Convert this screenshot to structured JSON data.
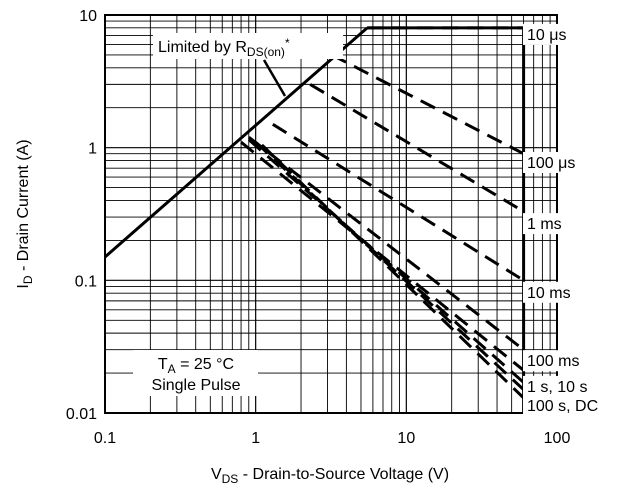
{
  "chart_data": {
    "type": "line",
    "x_scale": "log",
    "y_scale": "log",
    "xlim": [
      0.1,
      100
    ],
    "ylim": [
      0.01,
      10
    ],
    "grid": true,
    "x_tick_labels": [
      "0.1",
      "1",
      "10",
      "100"
    ],
    "y_tick_labels": [
      "0.01",
      "0.1",
      "1",
      "10"
    ],
    "xlabel": {
      "main": "V",
      "sub": "DS",
      "rest": " - Drain-to-Source Voltage (V)"
    },
    "ylabel": {
      "main": "I",
      "sub": "D",
      "rest": " - Drain Current (A)"
    },
    "annotations": {
      "rds_limit": {
        "main": "Limited by R",
        "sub": "DS(on)",
        "sup": "*"
      },
      "conditions": {
        "line1_main": "T",
        "line1_sub": "A",
        "line1_rest": " = 25 °C",
        "line2": "Single Pulse"
      }
    },
    "series": [
      {
        "id": "rds-limit",
        "style": "solid",
        "points": [
          [
            0.1,
            0.15
          ],
          [
            5.5,
            8
          ]
        ]
      },
      {
        "id": "current-limit",
        "style": "solid",
        "points": [
          [
            5.5,
            8
          ],
          [
            60,
            8
          ]
        ]
      },
      {
        "id": "voltage-limit",
        "style": "solid",
        "points": [
          [
            60,
            8
          ],
          [
            60,
            0.01
          ]
        ]
      },
      {
        "name": "10 μs",
        "style": "dashed",
        "points": [
          [
            5.5,
            8
          ],
          [
            60,
            8
          ]
        ]
      },
      {
        "name": "100 μs",
        "style": "dashed",
        "points": [
          [
            3.2,
            5
          ],
          [
            60,
            0.9
          ]
        ]
      },
      {
        "name": "1 ms",
        "style": "dashed",
        "points": [
          [
            2.3,
            3
          ],
          [
            60,
            0.33
          ]
        ]
      },
      {
        "name": "10 ms",
        "style": "dashed",
        "points": [
          [
            1.3,
            1.5
          ],
          [
            60,
            0.1
          ]
        ]
      },
      {
        "name": "100 ms",
        "style": "dashed",
        "points": [
          [
            0.9,
            1.2
          ],
          [
            60,
            0.03
          ]
        ]
      },
      {
        "name": "1 s, 10 s",
        "style": "dashed",
        "points": [
          [
            0.8,
            1.1
          ],
          [
            60,
            0.021
          ]
        ]
      },
      {
        "name": "1 s, 10 s",
        "style": "dashed",
        "points": [
          [
            0.9,
            1.15
          ],
          [
            60,
            0.017
          ]
        ]
      },
      {
        "name": "100 s, DC",
        "style": "dashed",
        "points": [
          [
            1.0,
            1.1
          ],
          [
            60,
            0.015
          ]
        ]
      },
      {
        "name": "100 s, DC",
        "style": "dashed",
        "points": [
          [
            1.1,
            1.05
          ],
          [
            60,
            0.013
          ]
        ]
      }
    ],
    "curve_labels": [
      {
        "text": "10 μs",
        "y": 7.2
      },
      {
        "text": "100 μs",
        "y": 0.78
      },
      {
        "text": "1 ms",
        "y": 0.27
      },
      {
        "text": "10 ms",
        "y": 0.082
      },
      {
        "text": "100 ms",
        "y": 0.025
      },
      {
        "text": "1 s, 10 s",
        "y": 0.016
      },
      {
        "text": "100 s, DC",
        "y": 0.0115
      }
    ]
  }
}
